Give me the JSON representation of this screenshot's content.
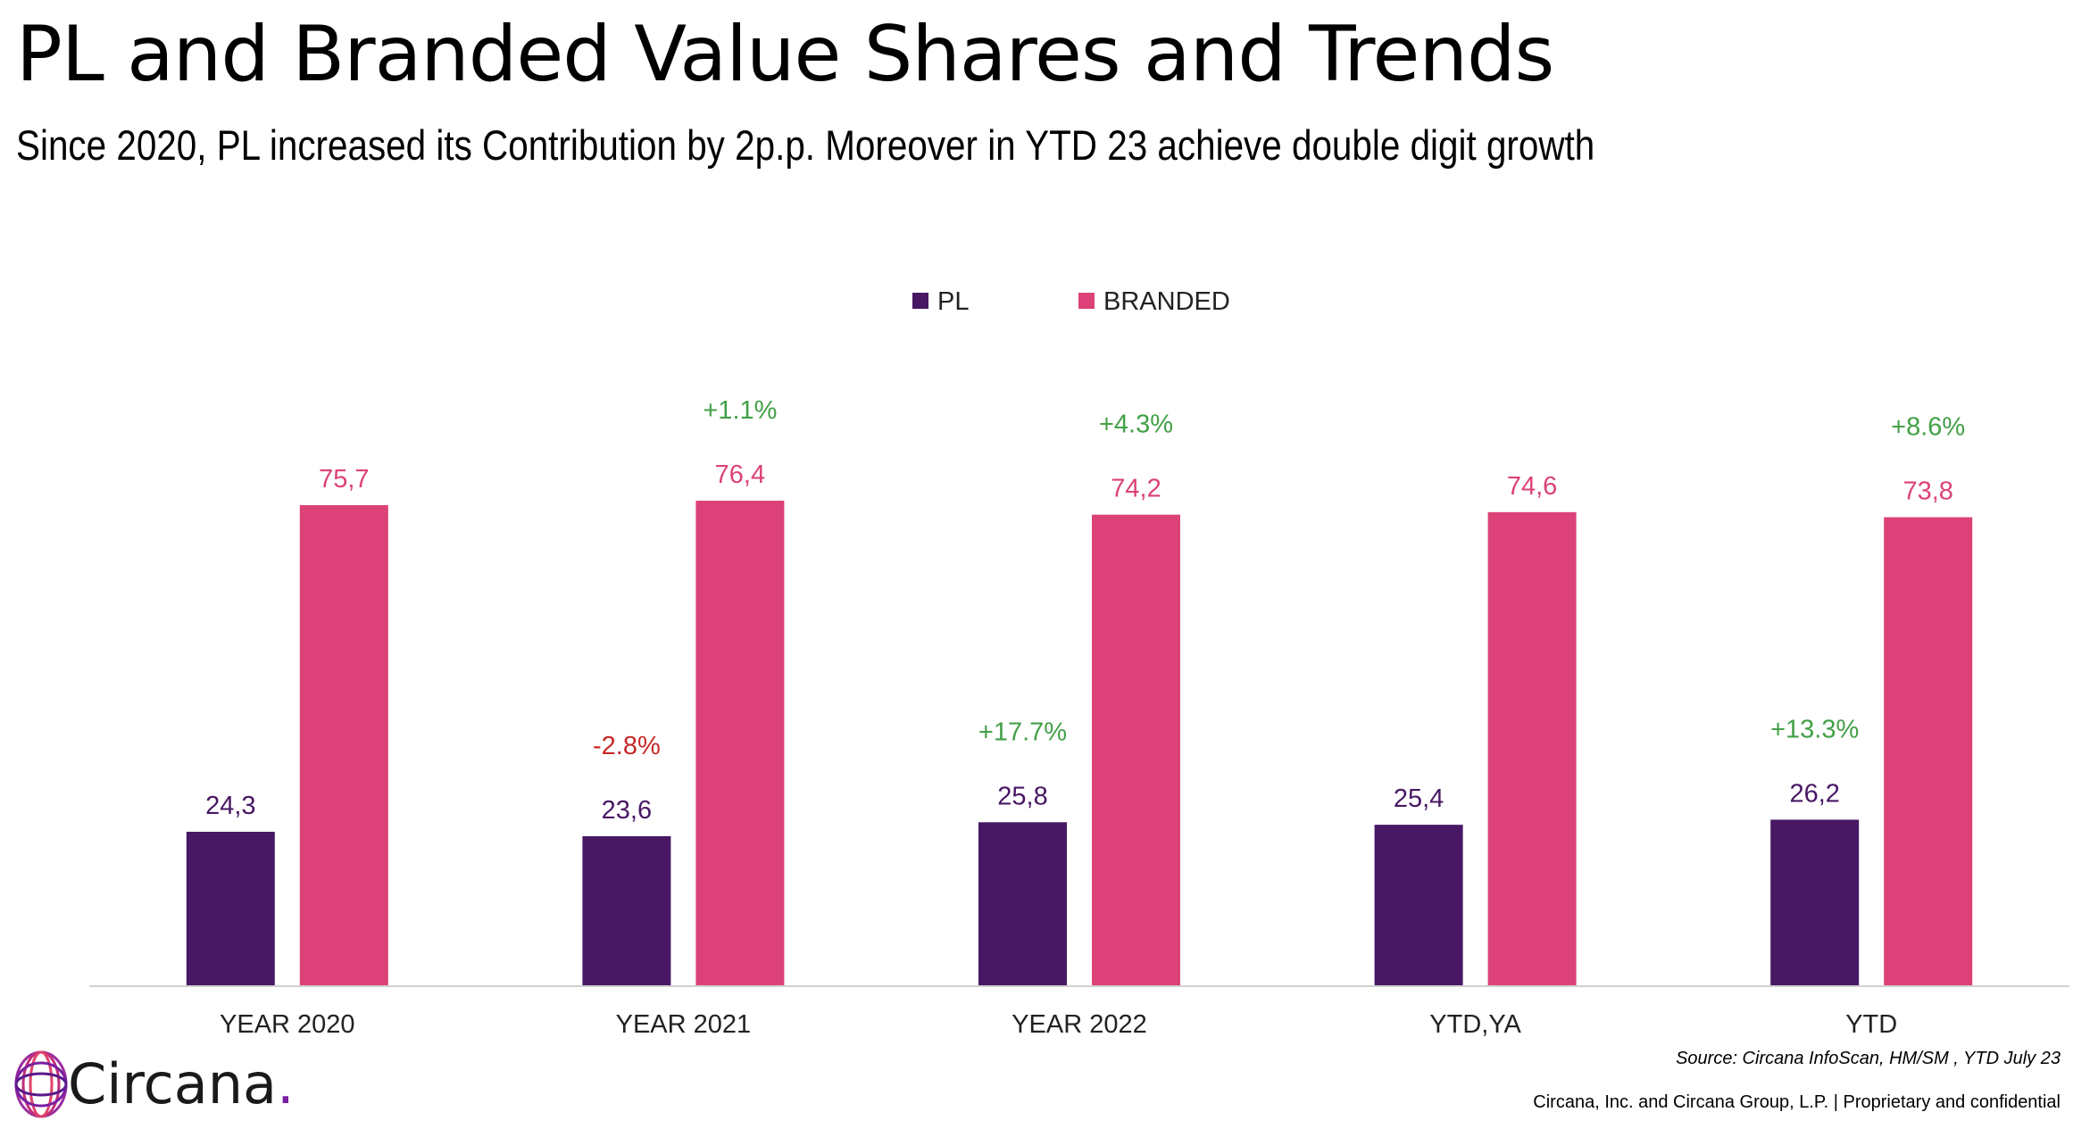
{
  "title": "PL and Branded Value Shares and Trends",
  "subtitle": "Since 2020, PL increased its Contribution by 2p.p. Moreover in YTD 23 achieve double digit growth",
  "source": "Source: Circana InfoScan, HM/SM , YTD July 23",
  "footer": "Circana, Inc. and Circana Group, L.P. |  Proprietary and confidential",
  "logo": {
    "name": "Circana",
    "dot": ".",
    "icon": "circana-rings-logo"
  },
  "colors": {
    "pl": "#481864",
    "branded": "#dc4278",
    "growth_positive": "#43a047",
    "growth_negative": "#c62828",
    "axis": "#d0d0d0",
    "text": "#222222"
  },
  "chart_data": {
    "type": "bar",
    "categories": [
      "YEAR 2020",
      "YEAR 2021",
      "YEAR 2022",
      "YTD,YA",
      "YTD"
    ],
    "series": [
      {
        "name": "PL",
        "values": [
          24.3,
          23.6,
          25.8,
          25.4,
          26.2
        ],
        "labels": [
          "24,3",
          "23,6",
          "25,8",
          "25,4",
          "26,2"
        ]
      },
      {
        "name": "BRANDED",
        "values": [
          75.7,
          76.4,
          74.2,
          74.6,
          73.8
        ],
        "labels": [
          "75,7",
          "76,4",
          "74,2",
          "74,6",
          "73,8"
        ]
      }
    ],
    "growth_annotations": [
      {
        "category": "YEAR 2021",
        "series": "PL",
        "text": "-2.8%"
      },
      {
        "category": "YEAR 2021",
        "series": "BRANDED",
        "text": "+1.1%"
      },
      {
        "category": "YEAR 2022",
        "series": "PL",
        "text": "+17.7%"
      },
      {
        "category": "YEAR 2022",
        "series": "BRANDED",
        "text": "+4.3%"
      },
      {
        "category": "YTD",
        "series": "PL",
        "text": "+13.3%"
      },
      {
        "category": "YTD",
        "series": "BRANDED",
        "text": "+8.6%"
      }
    ],
    "legend_position": "top-center",
    "grid": false,
    "ylim": [
      0,
      100
    ]
  }
}
